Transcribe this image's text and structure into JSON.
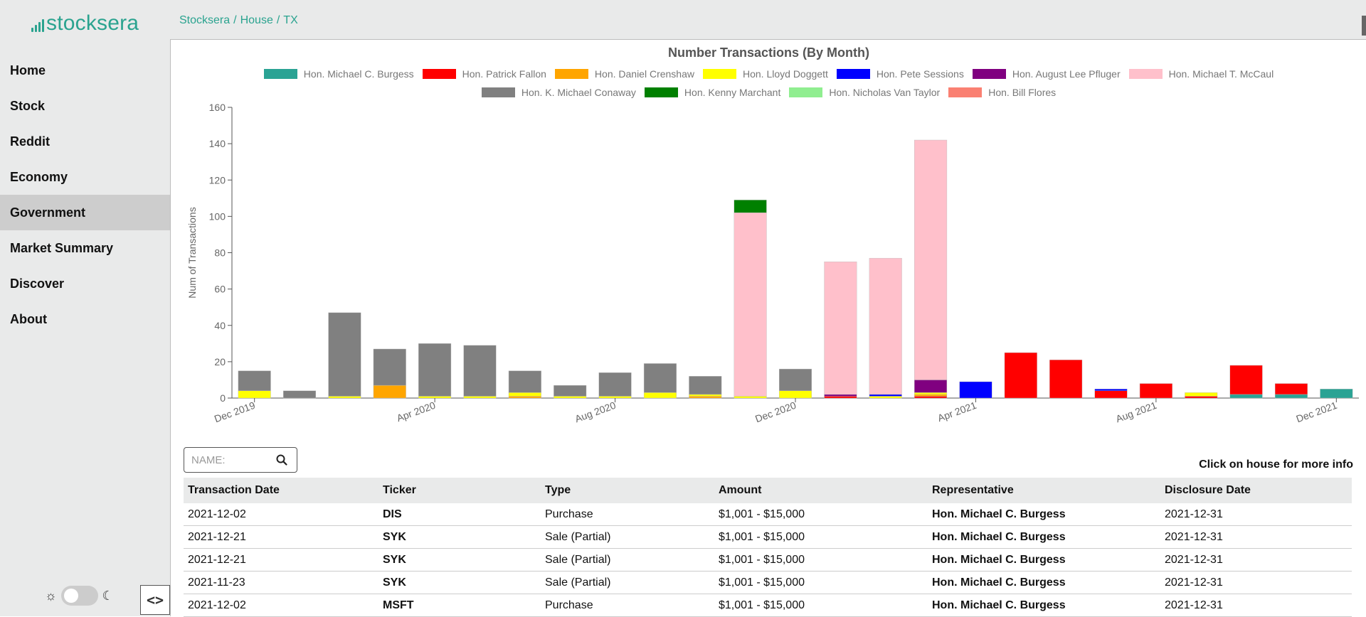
{
  "brand": {
    "name": "stocksera"
  },
  "breadcrumb": [
    "Stocksera",
    "House",
    "TX"
  ],
  "sidebar": {
    "items": [
      {
        "label": "Home"
      },
      {
        "label": "Stock"
      },
      {
        "label": "Reddit"
      },
      {
        "label": "Economy"
      },
      {
        "label": "Government",
        "active": true
      },
      {
        "label": "Market Summary"
      },
      {
        "label": "Discover"
      },
      {
        "label": "About"
      }
    ]
  },
  "theme_toggle": {
    "sun_icon": "☼",
    "moon_icon": "☾",
    "dark_mode": false
  },
  "code_button": {
    "label": "<>"
  },
  "chart_data": {
    "type": "bar",
    "stacked": true,
    "title": "Number Transactions (By Month)",
    "ylabel": "Num of Transactions",
    "xlabel": "",
    "ylim": [
      0,
      160
    ],
    "yticks": [
      0,
      20,
      40,
      60,
      80,
      100,
      120,
      140,
      160
    ],
    "grid": false,
    "legend_placement": "top-center",
    "categories": [
      "Dec 2019",
      "Jan 2020",
      "Feb 2020",
      "Mar 2020",
      "Apr 2020",
      "May 2020",
      "Jun 2020",
      "Jul 2020",
      "Aug 2020",
      "Sep 2020",
      "Oct 2020",
      "Nov 2020",
      "Dec 2020",
      "Jan 2021",
      "Feb 2021",
      "Mar 2021",
      "Apr 2021",
      "May 2021",
      "Jun 2021",
      "Jul 2021",
      "Aug 2021",
      "Sep 2021",
      "Oct 2021",
      "Nov 2021",
      "Dec 2021"
    ],
    "xtick_labels": [
      {
        "label": "Dec 2019",
        "index": 0
      },
      {
        "label": "Apr 2020",
        "index": 4
      },
      {
        "label": "Aug 2020",
        "index": 8
      },
      {
        "label": "Dec 2020",
        "index": 12
      },
      {
        "label": "Apr 2021",
        "index": 16
      },
      {
        "label": "Aug 2021",
        "index": 20
      },
      {
        "label": "Dec 2021",
        "index": 24
      }
    ],
    "series": [
      {
        "name": "Hon. Michael C. Burgess",
        "color": "#2aa394",
        "values": [
          0,
          0,
          0,
          0,
          0,
          0,
          0,
          0,
          0,
          0,
          0,
          0,
          0,
          0,
          0,
          0,
          0,
          0,
          0,
          0,
          0,
          0,
          2,
          2,
          5
        ]
      },
      {
        "name": "Hon. Patrick Fallon",
        "color": "#ff0000",
        "values": [
          0,
          0,
          0,
          0,
          0,
          0,
          0,
          0,
          0,
          0,
          0,
          0,
          0,
          1,
          0,
          1,
          0,
          25,
          21,
          4,
          8,
          1,
          16,
          6,
          0
        ]
      },
      {
        "name": "Hon. Daniel Crenshaw",
        "color": "#ffa500",
        "values": [
          0,
          0,
          0,
          7,
          0,
          0,
          1,
          0,
          0,
          0,
          1,
          0,
          0,
          0,
          0,
          1,
          0,
          0,
          0,
          0,
          0,
          0,
          0,
          0,
          0
        ]
      },
      {
        "name": "Hon. Lloyd Doggett",
        "color": "#ffff00",
        "values": [
          4,
          0,
          1,
          0,
          1,
          1,
          2,
          1,
          1,
          3,
          1,
          1,
          4,
          0,
          1,
          1,
          0,
          0,
          0,
          0,
          0,
          2,
          0,
          0,
          0
        ]
      },
      {
        "name": "Hon. Pete Sessions",
        "color": "#0000ff",
        "values": [
          0,
          0,
          0,
          0,
          0,
          0,
          0,
          0,
          0,
          0,
          0,
          0,
          0,
          0,
          1,
          0,
          9,
          0,
          0,
          1,
          0,
          0,
          0,
          0,
          0
        ]
      },
      {
        "name": "Hon. August Lee Pfluger",
        "color": "#800080",
        "values": [
          0,
          0,
          0,
          0,
          0,
          0,
          0,
          0,
          0,
          0,
          0,
          0,
          0,
          1,
          0,
          7,
          0,
          0,
          0,
          0,
          0,
          0,
          0,
          0,
          0
        ]
      },
      {
        "name": "Hon. Michael T. McCaul",
        "color": "#ffc0cb",
        "values": [
          0,
          0,
          0,
          0,
          0,
          0,
          0,
          0,
          0,
          0,
          0,
          101,
          0,
          73,
          75,
          132,
          0,
          0,
          0,
          0,
          0,
          0,
          0,
          0,
          0
        ]
      },
      {
        "name": "Hon. K. Michael Conaway",
        "color": "#808080",
        "values": [
          11,
          4,
          46,
          20,
          29,
          28,
          12,
          6,
          13,
          16,
          10,
          0,
          12,
          0,
          0,
          0,
          0,
          0,
          0,
          0,
          0,
          0,
          0,
          0,
          0
        ]
      },
      {
        "name": "Hon. Kenny Marchant",
        "color": "#008000",
        "values": [
          0,
          0,
          0,
          0,
          0,
          0,
          0,
          0,
          0,
          0,
          0,
          7,
          0,
          0,
          0,
          0,
          0,
          0,
          0,
          0,
          0,
          0,
          0,
          0,
          0
        ]
      },
      {
        "name": "Hon. Nicholas Van Taylor",
        "color": "#90ee90",
        "values": [
          0,
          0,
          0,
          0,
          0,
          0,
          0,
          0,
          0,
          0,
          0,
          0,
          0,
          0,
          0,
          0,
          0,
          0,
          0,
          0,
          0,
          0,
          0,
          0,
          0
        ]
      },
      {
        "name": "Hon. Bill Flores",
        "color": "#fa8072",
        "values": [
          0,
          0,
          0,
          0,
          0,
          0,
          0,
          0,
          0,
          0,
          0,
          0,
          0,
          0,
          0,
          0,
          0,
          0,
          0,
          0,
          0,
          0,
          0,
          0,
          0
        ]
      }
    ]
  },
  "legend_rows": [
    [
      0,
      1,
      2,
      3,
      4,
      5,
      6
    ],
    [
      7,
      8,
      9,
      10
    ]
  ],
  "search": {
    "placeholder": "NAME:",
    "value": ""
  },
  "info_text": "Click on house for more info",
  "table": {
    "headers": [
      "Transaction Date",
      "Ticker",
      "Type",
      "Amount",
      "Representative",
      "Disclosure Date"
    ],
    "rows": [
      [
        "2021-12-02",
        "DIS",
        "Purchase",
        "$1,001 - $15,000",
        "Hon. Michael C. Burgess",
        "2021-12-31"
      ],
      [
        "2021-12-21",
        "SYK",
        "Sale (Partial)",
        "$1,001 - $15,000",
        "Hon. Michael C. Burgess",
        "2021-12-31"
      ],
      [
        "2021-12-21",
        "SYK",
        "Sale (Partial)",
        "$1,001 - $15,000",
        "Hon. Michael C. Burgess",
        "2021-12-31"
      ],
      [
        "2021-11-23",
        "SYK",
        "Sale (Partial)",
        "$1,001 - $15,000",
        "Hon. Michael C. Burgess",
        "2021-12-31"
      ],
      [
        "2021-12-02",
        "MSFT",
        "Purchase",
        "$1,001 - $15,000",
        "Hon. Michael C. Burgess",
        "2021-12-31"
      ]
    ]
  }
}
